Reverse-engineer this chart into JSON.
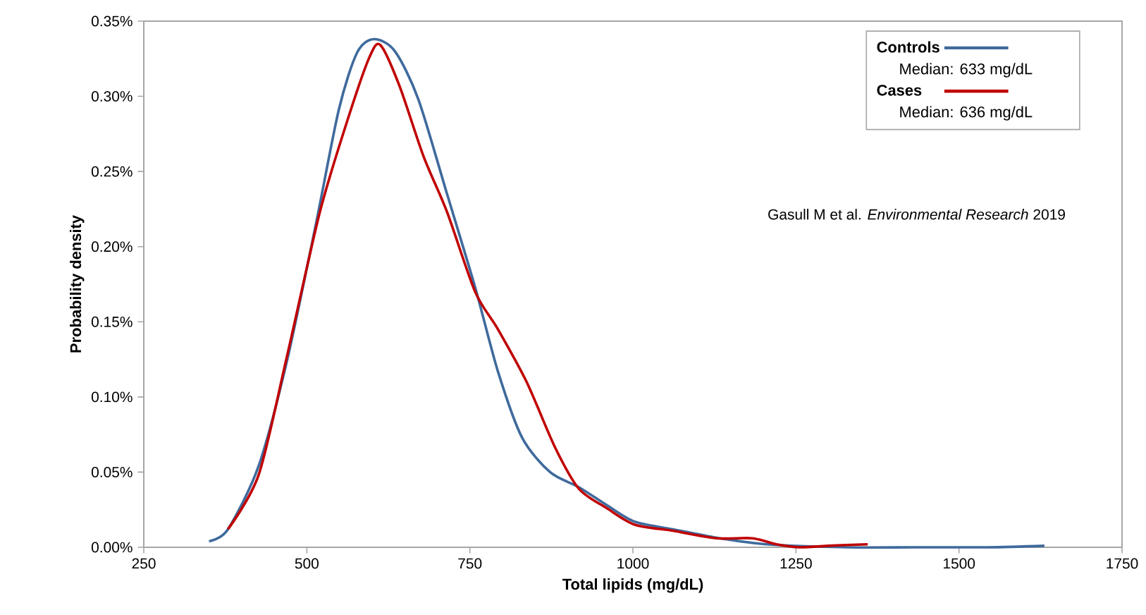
{
  "chart_data": {
    "type": "line",
    "xlabel": "Total lipids (mg/dL)",
    "ylabel": "Probability  density",
    "xlim": [
      250,
      1750
    ],
    "xticks": [
      250,
      500,
      750,
      1000,
      1250,
      1500,
      1750
    ],
    "ylim": [
      0,
      0.35
    ],
    "yticks": [
      {
        "value": 0,
        "label": "0.00%"
      },
      {
        "value": 0.05,
        "label": "0.05%"
      },
      {
        "value": 0.1,
        "label": "0.10%"
      },
      {
        "value": 0.15,
        "label": "0.15%"
      },
      {
        "value": 0.2,
        "label": "0.20%"
      },
      {
        "value": 0.25,
        "label": "0.25%"
      },
      {
        "value": 0.3,
        "label": "0.30%"
      },
      {
        "value": 0.35,
        "label": "0.35%"
      }
    ],
    "legend": "top right",
    "grid": false,
    "marker": "none",
    "line_style": "solid",
    "annotations": [
      "Median:  633 mg/dL",
      "Median:  636 mg/dL",
      "Gasull M et al. *Environmental Research* 2019"
    ],
    "series": [
      {
        "name": "Controls",
        "color": "#3f6a9c",
        "x": [
          350,
          379,
          426,
          469,
          513,
          549,
          577,
          603,
          635,
          671,
          715,
          758,
          793,
          830,
          873,
          917,
          960,
          1003,
          1061,
          1133,
          1205,
          1328,
          1436,
          1544,
          1631
        ],
        "values": [
          0.004,
          0.012,
          0.054,
          0.123,
          0.213,
          0.291,
          0.329,
          0.338,
          0.33,
          0.298,
          0.235,
          0.173,
          0.117,
          0.073,
          0.05,
          0.04,
          0.028,
          0.017,
          0.012,
          0.006,
          0.002,
          0,
          0,
          0,
          0.001
        ]
      },
      {
        "name": "Cases",
        "color": "#c00000",
        "x": [
          379,
          426,
          469,
          520,
          563,
          596,
          613,
          642,
          679,
          715,
          758,
          793,
          837,
          880,
          917,
          960,
          1003,
          1061,
          1128,
          1183,
          1220,
          1256,
          1299,
          1360
        ],
        "values": [
          0.012,
          0.048,
          0.126,
          0.223,
          0.285,
          0.326,
          0.334,
          0.307,
          0.26,
          0.223,
          0.17,
          0.145,
          0.11,
          0.067,
          0.039,
          0.026,
          0.015,
          0.011,
          0.006,
          0.006,
          0.002,
          0,
          0.001,
          0.002
        ]
      }
    ]
  }
}
